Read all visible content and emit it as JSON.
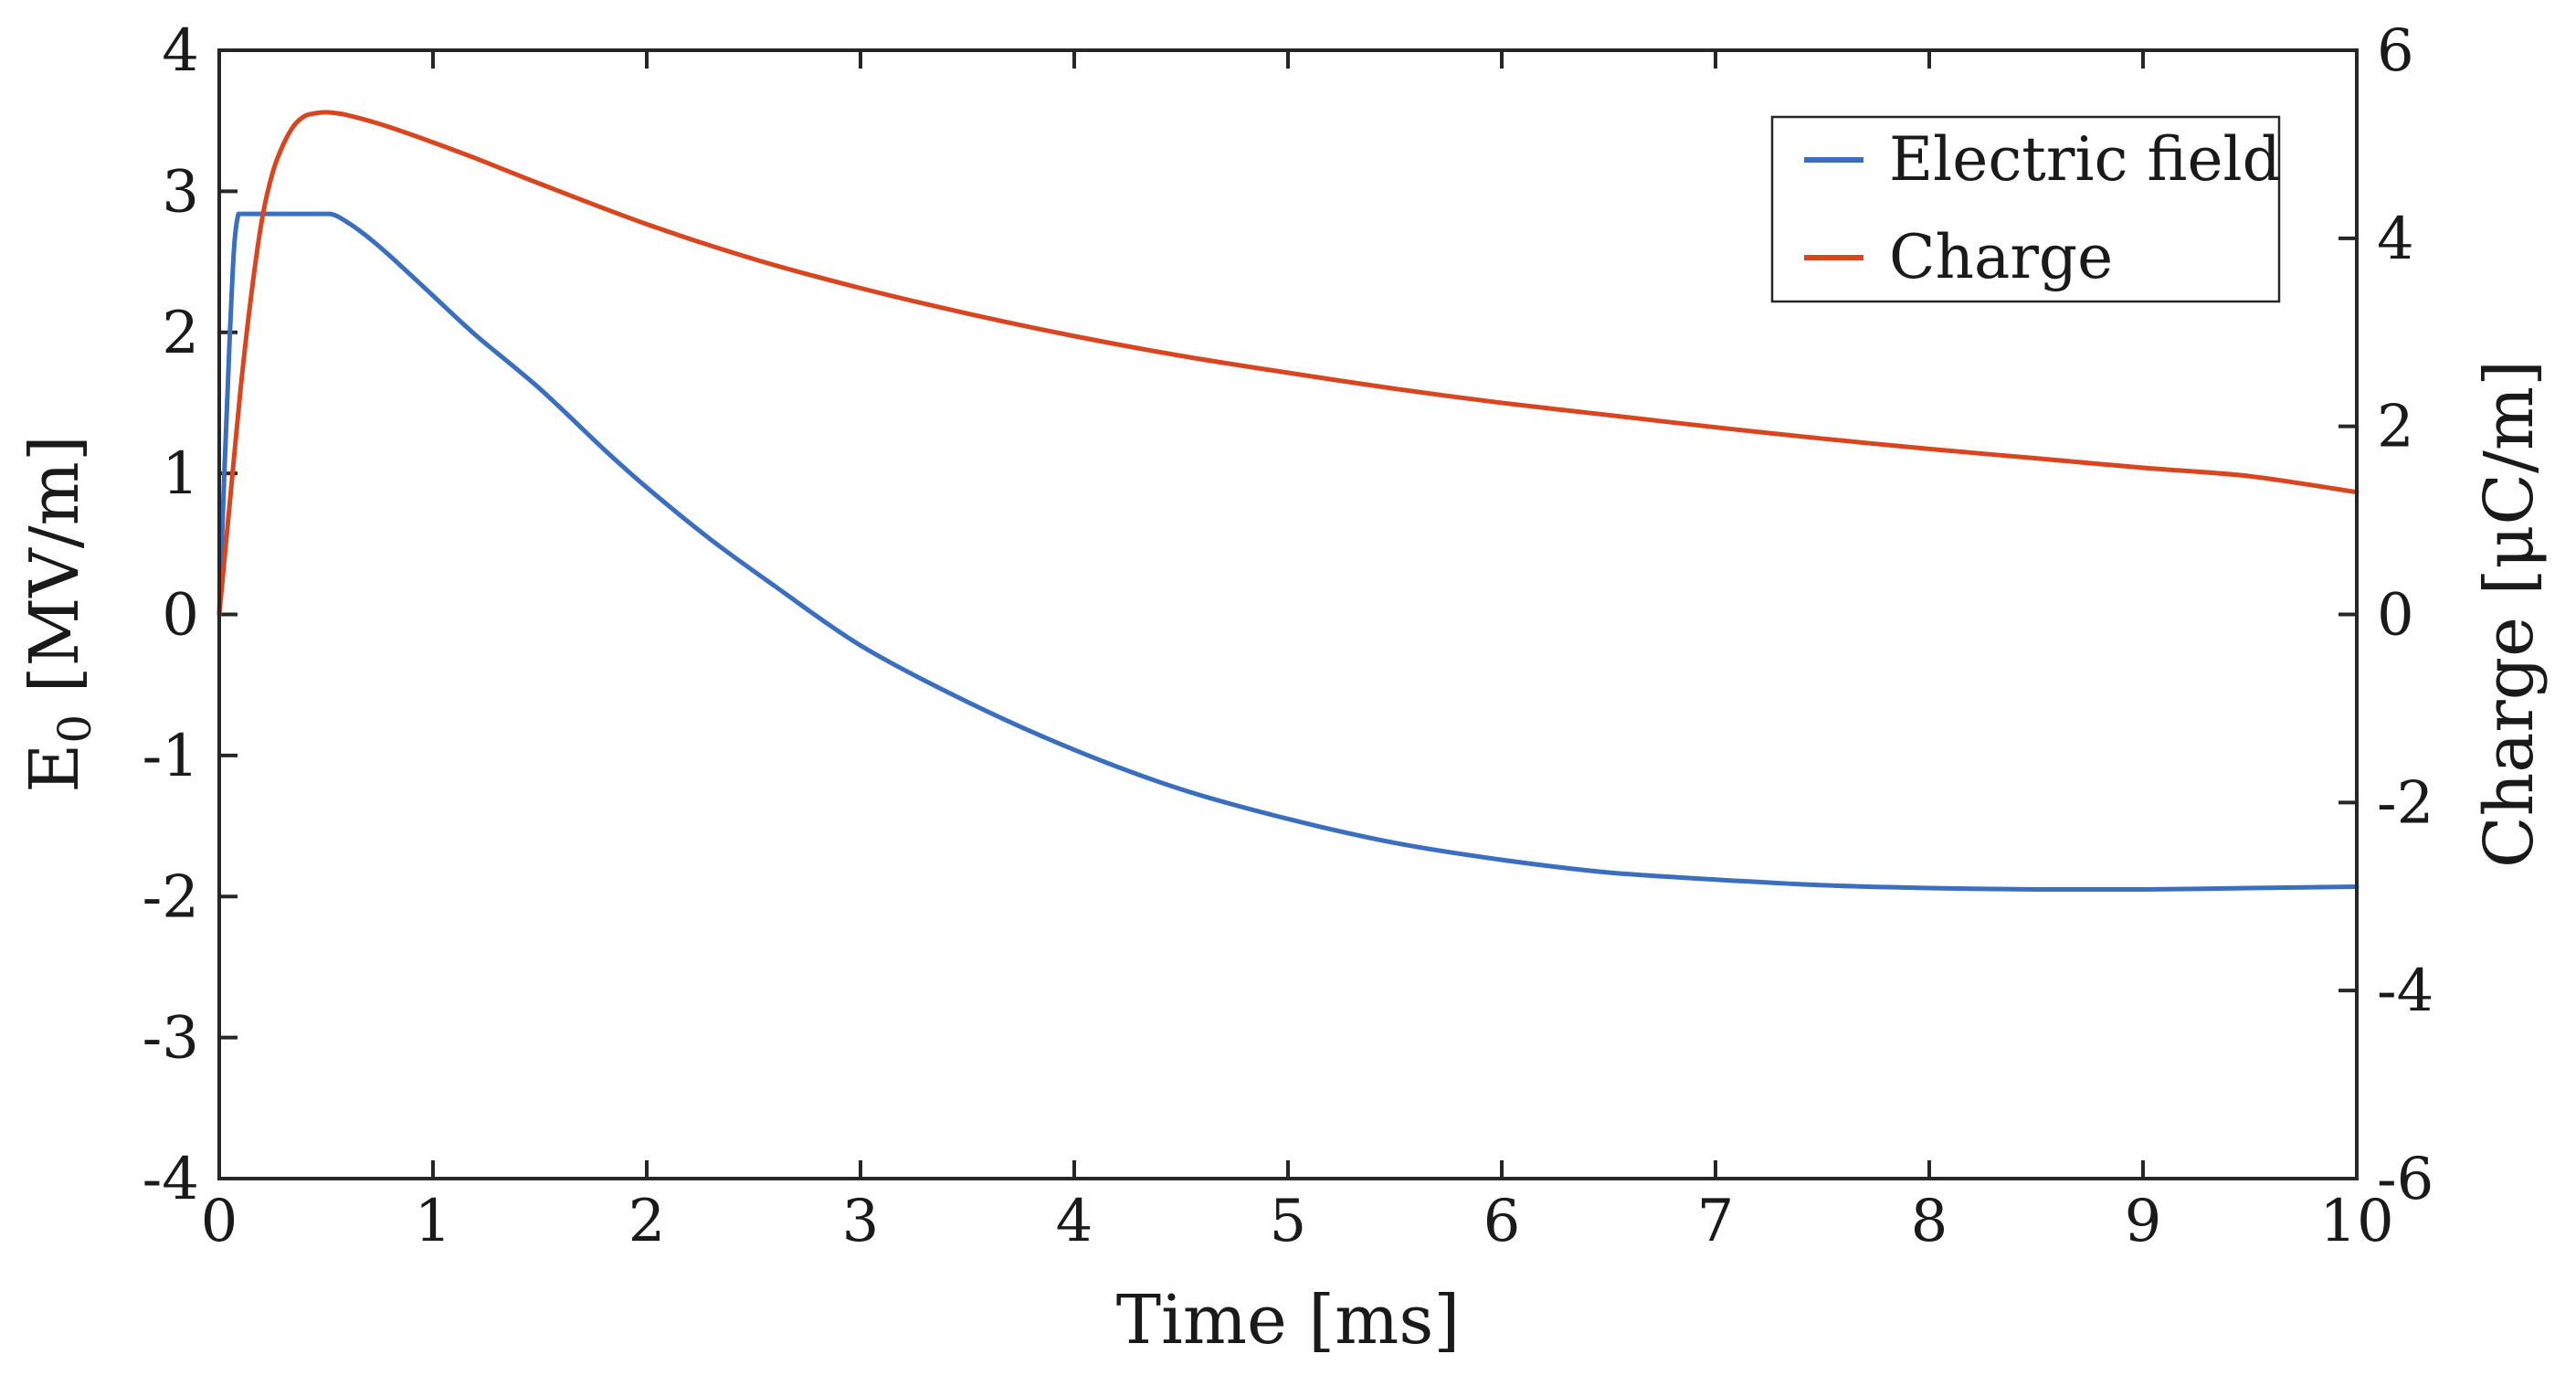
{
  "chart_data": {
    "type": "line",
    "title": "",
    "xlabel": "Time [ms]",
    "ylabel_left": {
      "main": "E",
      "sub": "0",
      "unit": " [MV/m]"
    },
    "ylabel_right": "Charge [μC/m]",
    "xlim": [
      0,
      10
    ],
    "ylim_left": [
      -4,
      4
    ],
    "ylim_right": [
      -6,
      6
    ],
    "xticks": [
      0,
      1,
      2,
      3,
      4,
      5,
      6,
      7,
      8,
      9,
      10
    ],
    "xtick_labels": [
      "0",
      "1",
      "2",
      "3",
      "4",
      "5",
      "6",
      "7",
      "8",
      "9",
      "10"
    ],
    "yticks_left": [
      -4,
      -3,
      -2,
      -1,
      0,
      1,
      2,
      3,
      4
    ],
    "ytick_labels_left": [
      "-4",
      "-3",
      "-2",
      "-1",
      "0",
      "1",
      "2",
      "3",
      "4"
    ],
    "yticks_right": [
      -6,
      -4,
      -2,
      0,
      2,
      4,
      6
    ],
    "ytick_labels_right": [
      "-6",
      "-4",
      "-2",
      "0",
      "2",
      "4",
      "6"
    ],
    "grid": false,
    "legend": {
      "position": "top-right"
    },
    "series": [
      {
        "name": "Electric field",
        "axis": "left",
        "color": "#3a6fbf",
        "x": [
          0,
          0.05,
          0.09,
          0.2,
          0.3,
          0.4,
          0.52,
          0.6,
          0.7,
          0.8,
          1.0,
          1.2,
          1.5,
          1.8,
          2.0,
          2.3,
          2.6,
          3.0,
          3.5,
          4.0,
          4.5,
          5.0,
          5.5,
          6.0,
          6.5,
          7.0,
          7.5,
          8.0,
          8.5,
          9.0,
          9.5,
          10.0
        ],
        "y": [
          0,
          2.0,
          2.84,
          2.84,
          2.84,
          2.84,
          2.84,
          2.78,
          2.67,
          2.54,
          2.26,
          1.98,
          1.6,
          1.17,
          0.9,
          0.53,
          0.2,
          -0.22,
          -0.62,
          -0.96,
          -1.24,
          -1.45,
          -1.62,
          -1.74,
          -1.83,
          -1.88,
          -1.92,
          -1.94,
          -1.95,
          -1.95,
          -1.94,
          -1.93
        ]
      },
      {
        "name": "Charge",
        "axis": "right",
        "color": "#d9451f",
        "x": [
          0,
          0.05,
          0.1,
          0.15,
          0.2,
          0.25,
          0.3,
          0.35,
          0.4,
          0.45,
          0.5,
          0.55,
          0.6,
          0.7,
          0.8,
          1.0,
          1.2,
          1.5,
          2.0,
          2.5,
          3.0,
          3.5,
          4.0,
          4.5,
          5.0,
          5.5,
          6.0,
          6.5,
          7.0,
          7.5,
          8.0,
          8.5,
          9.0,
          9.5,
          10.0
        ],
        "y": [
          0,
          1.2,
          2.4,
          3.4,
          4.2,
          4.7,
          5.0,
          5.2,
          5.3,
          5.33,
          5.34,
          5.33,
          5.31,
          5.25,
          5.18,
          5.02,
          4.85,
          4.58,
          4.15,
          3.78,
          3.47,
          3.2,
          2.96,
          2.75,
          2.57,
          2.4,
          2.25,
          2.12,
          1.99,
          1.87,
          1.76,
          1.66,
          1.56,
          1.47,
          1.3
        ]
      }
    ]
  }
}
